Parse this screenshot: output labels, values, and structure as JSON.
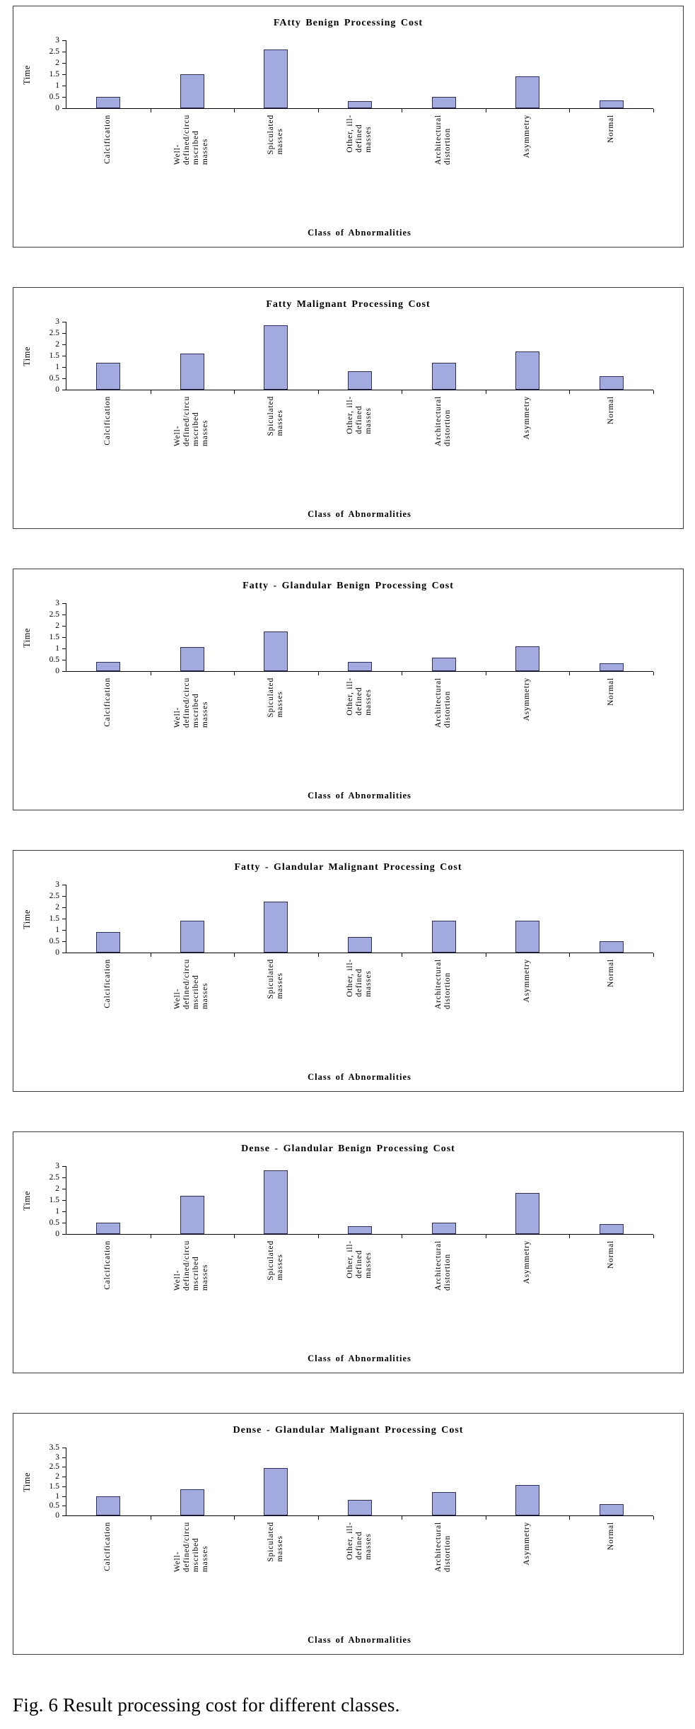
{
  "caption": "Fig. 6 Result processing cost for different classes.",
  "colors": {
    "bar_fill": "#a3aae0",
    "bar_border": "#2e2e66",
    "axis": "#000000",
    "box_border": "#3c3c3c"
  },
  "chart_data": [
    {
      "type": "bar",
      "title": "FAtty Benign Processing Cost",
      "ylabel": "Time",
      "xlabel": "Class of Abnormalities",
      "ylim": [
        0,
        3
      ],
      "yticks": [
        "0",
        "0.5",
        "1",
        "1.5",
        "2",
        "2.5",
        "3"
      ],
      "grid": false,
      "legend": "none",
      "categories": [
        "Calcification",
        "Well-\ndefined/circu\nmscribed\nmasses",
        "Spiculated\nmasses",
        "Other, ill-\ndefined\nmasses",
        "Architectural\ndistortion",
        "Asymmetry",
        "Normal"
      ],
      "values": [
        0.5,
        1.5,
        2.6,
        0.3,
        0.5,
        1.4,
        0.35
      ]
    },
    {
      "type": "bar",
      "title": "Fatty Malignant Processing Cost",
      "ylabel": "Time",
      "xlabel": "Class of Abnormalities",
      "ylim": [
        0,
        3
      ],
      "yticks": [
        "0",
        "0.5",
        "1",
        "1.5",
        "2",
        "2.5",
        "3"
      ],
      "grid": false,
      "legend": "none",
      "categories": [
        "Calcification",
        "Well-\ndefined/circu\nmscribed\nmasses",
        "Spiculated\nmasses",
        "Other, ill-\ndefined\nmasses",
        "Architectural\ndistortion",
        "Asymmetry",
        "Normal"
      ],
      "values": [
        1.2,
        1.6,
        2.85,
        0.8,
        1.2,
        1.7,
        0.6
      ]
    },
    {
      "type": "bar",
      "title": "Fatty - Glandular Benign Processing Cost",
      "ylabel": "Time",
      "xlabel": "Class of Abnormalities",
      "ylim": [
        0,
        3
      ],
      "yticks": [
        "0",
        "0.5",
        "1",
        "1.5",
        "2",
        "2.5",
        "3"
      ],
      "grid": false,
      "legend": "none",
      "categories": [
        "Calcification",
        "Well-\ndefined/circu\nmscribed\nmasses",
        "Spiculated\nmasses",
        "Other, ill-\ndefined\nmasses",
        "Architectural\ndistortion",
        "Asymmetry",
        "Normal"
      ],
      "values": [
        0.4,
        1.05,
        1.75,
        0.4,
        0.6,
        1.1,
        0.35
      ]
    },
    {
      "type": "bar",
      "title": "Fatty - Glandular Malignant Processing Cost",
      "ylabel": "Time",
      "xlabel": "Class of Abnormalities",
      "ylim": [
        0,
        3
      ],
      "yticks": [
        "0",
        "0.5",
        "1",
        "1.5",
        "2",
        "2.5",
        "3"
      ],
      "grid": false,
      "legend": "none",
      "categories": [
        "Calcification",
        "Well-\ndefined/circu\nmscribed\nmasses",
        "Spiculated\nmasses",
        "Other, ill-\ndefined\nmasses",
        "Architectural\ndistortion",
        "Asymmetry",
        "Normal"
      ],
      "values": [
        0.9,
        1.4,
        2.25,
        0.7,
        1.4,
        1.4,
        0.5
      ]
    },
    {
      "type": "bar",
      "title": "Dense - Glandular Benign Processing Cost",
      "ylabel": "Time",
      "xlabel": "Class of Abnormalities",
      "ylim": [
        0,
        3
      ],
      "yticks": [
        "0",
        "0.5",
        "1",
        "1.5",
        "2",
        "2.5",
        "3"
      ],
      "grid": false,
      "legend": "none",
      "categories": [
        "Calcification",
        "Well-\ndefined/circu\nmscribed\nmasses",
        "Spiculated\nmasses",
        "Other, ill-\ndefined\nmasses",
        "Architectural\ndistortion",
        "Asymmetry",
        "Normal"
      ],
      "values": [
        0.5,
        1.7,
        2.8,
        0.35,
        0.5,
        1.8,
        0.45
      ]
    },
    {
      "type": "bar",
      "title": "Dense - Glandular Malignant Processing Cost",
      "ylabel": "Time",
      "xlabel": "Class of Abnormalities",
      "ylim": [
        0,
        3.5
      ],
      "yticks": [
        "0",
        "0.5",
        "1",
        "1.5",
        "2",
        "2.5",
        "3",
        "3.5"
      ],
      "grid": false,
      "legend": "none",
      "categories": [
        "Calcification",
        "Well-\ndefined/circu\nmscribed\nmasses",
        "Spiculated\nmasses",
        "Other, ill-\ndefined\nmasses",
        "Architectural\ndistortion",
        "Asymmetry",
        "Normal"
      ],
      "values": [
        1.0,
        1.35,
        2.45,
        0.8,
        1.2,
        1.55,
        0.6
      ]
    }
  ]
}
